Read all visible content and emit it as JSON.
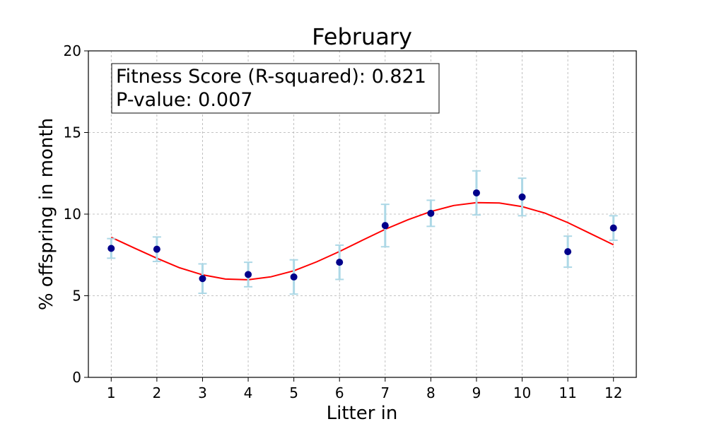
{
  "chart_data": {
    "type": "scatter",
    "title": "February",
    "xlabel": "Litter in",
    "ylabel": "% offspring in month",
    "xlim": [
      0.5,
      12.5
    ],
    "ylim": [
      0,
      20
    ],
    "xticks": [
      "1",
      "2",
      "3",
      "4",
      "5",
      "6",
      "7",
      "8",
      "9",
      "10",
      "11",
      "12"
    ],
    "yticks": [
      "0",
      "5",
      "10",
      "15",
      "20"
    ],
    "grid": true,
    "points": {
      "x": [
        1,
        2,
        3,
        4,
        5,
        6,
        7,
        8,
        9,
        10,
        11,
        12
      ],
      "y": [
        7.9,
        7.85,
        6.05,
        6.3,
        6.15,
        7.05,
        9.3,
        10.05,
        11.3,
        11.05,
        7.7,
        9.15
      ],
      "err_low": [
        0.6,
        0.75,
        0.9,
        0.75,
        1.05,
        1.05,
        1.3,
        0.8,
        1.35,
        1.15,
        0.95,
        0.75
      ],
      "err_high": [
        0.6,
        0.75,
        0.9,
        0.75,
        1.05,
        1.05,
        1.3,
        0.8,
        1.35,
        1.15,
        0.95,
        0.75
      ],
      "color": "#00008b",
      "errorbar_color": "#add8e6"
    },
    "fit": {
      "color": "#ff0000",
      "x": [
        1,
        1.5,
        2,
        2.5,
        3,
        3.5,
        4,
        4.5,
        5,
        5.5,
        6,
        6.5,
        7,
        7.5,
        8,
        8.5,
        9,
        9.5,
        10,
        10.5,
        11,
        11.5,
        12
      ],
      "y": [
        8.58,
        7.93,
        7.3,
        6.71,
        6.28,
        6.02,
        5.98,
        6.16,
        6.53,
        7.08,
        7.71,
        8.4,
        9.07,
        9.66,
        10.16,
        10.53,
        10.7,
        10.68,
        10.46,
        10.06,
        9.48,
        8.8,
        8.12
      ]
    },
    "annotation": {
      "line1": "Fitness Score (R-squared): 0.821",
      "line2": "P-value: 0.007"
    }
  }
}
